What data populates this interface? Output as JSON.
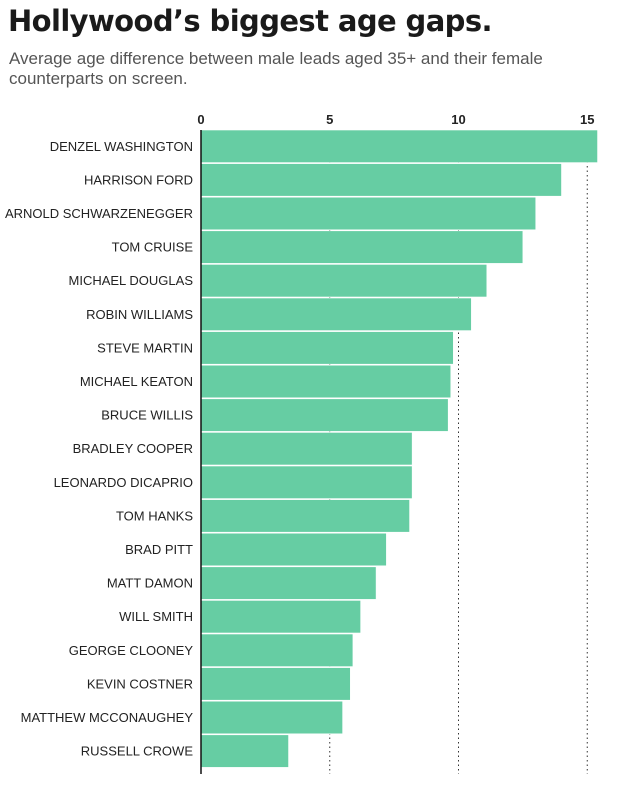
{
  "title": "Hollywood’s biggest age gaps.",
  "subtitle": "Average age difference between male leads aged 35+ and their female counterparts on screen.",
  "colors": {
    "bar": "#66cda3",
    "bar_border": "#ffffff",
    "axis": "#111111",
    "grid": "#333333",
    "text": "#222222"
  },
  "chart_data": {
    "type": "bar",
    "orientation": "horizontal",
    "title": "Hollywood’s biggest age gaps.",
    "subtitle": "Average age difference between male leads aged 35+ and their female counterparts on screen.",
    "xlabel": "",
    "ylabel": "",
    "xlim": [
      0,
      15.6
    ],
    "xticks": [
      0,
      5,
      10,
      15
    ],
    "tick_labels": [
      "0",
      "5",
      "10",
      "15"
    ],
    "grid": "vertical dotted lines at 5, 10, 15",
    "categories": [
      "DENZEL WASHINGTON",
      "HARRISON FORD",
      "ARNOLD SCHWARZENEGGER",
      "TOM CRUISE",
      "MICHAEL DOUGLAS",
      "ROBIN WILLIAMS",
      "STEVE MARTIN",
      "MICHAEL KEATON",
      "BRUCE WILLIS",
      "BRADLEY COOPER",
      "LEONARDO DICAPRIO",
      "TOM HANKS",
      "BRAD PITT",
      "MATT DAMON",
      "WILL SMITH",
      "GEORGE CLOONEY",
      "KEVIN COSTNER",
      "MATTHEW MCCONAUGHEY",
      "RUSSELL CROWE"
    ],
    "values": [
      15.4,
      14.0,
      13.0,
      12.5,
      11.1,
      10.5,
      9.8,
      9.7,
      9.6,
      8.2,
      8.2,
      8.1,
      7.2,
      6.8,
      6.2,
      5.9,
      5.8,
      5.5,
      3.4
    ]
  }
}
